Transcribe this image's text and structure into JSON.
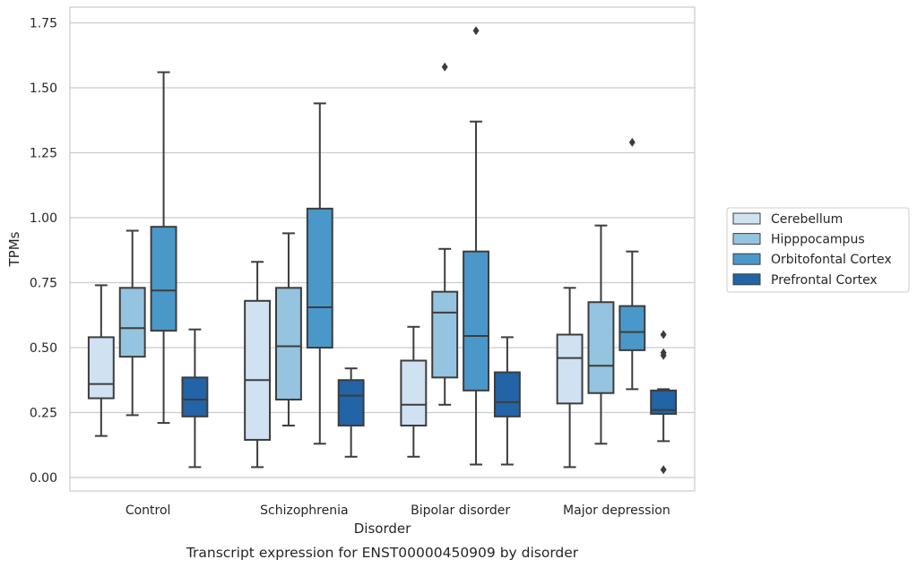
{
  "caption": "Transcript expression for ENST00000450909 by disorder",
  "chart_data": {
    "type": "box",
    "xlabel": "Disorder",
    "ylabel": "TPMs",
    "ylim": [
      -0.05,
      1.81
    ],
    "yticks": [
      0.0,
      0.25,
      0.5,
      0.75,
      1.0,
      1.25,
      1.5,
      1.75
    ],
    "ytick_labels": [
      "0.00",
      "0.25",
      "0.50",
      "0.75",
      "1.00",
      "1.25",
      "1.50",
      "1.75"
    ],
    "grid": "horizontal",
    "legend_position": "right",
    "categories": [
      "Control",
      "Schizophrenia",
      "Bipolar disorder",
      "Major depression"
    ],
    "series": [
      {
        "name": "Cerebellum",
        "color": "#d0e1f2",
        "boxes": [
          {
            "whislo": 0.16,
            "q1": 0.305,
            "med": 0.36,
            "q3": 0.54,
            "whishi": 0.74,
            "fliers": []
          },
          {
            "whislo": 0.04,
            "q1": 0.145,
            "med": 0.375,
            "q3": 0.68,
            "whishi": 0.83,
            "fliers": []
          },
          {
            "whislo": 0.08,
            "q1": 0.2,
            "med": 0.28,
            "q3": 0.45,
            "whishi": 0.58,
            "fliers": []
          },
          {
            "whislo": 0.04,
            "q1": 0.285,
            "med": 0.46,
            "q3": 0.55,
            "whishi": 0.73,
            "fliers": []
          }
        ]
      },
      {
        "name": "Hipppocampus",
        "color": "#94c4df",
        "boxes": [
          {
            "whislo": 0.24,
            "q1": 0.465,
            "med": 0.575,
            "q3": 0.73,
            "whishi": 0.95,
            "fliers": []
          },
          {
            "whislo": 0.2,
            "q1": 0.3,
            "med": 0.505,
            "q3": 0.73,
            "whishi": 0.94,
            "fliers": []
          },
          {
            "whislo": 0.28,
            "q1": 0.385,
            "med": 0.635,
            "q3": 0.715,
            "whishi": 0.88,
            "fliers": [
              1.58
            ]
          },
          {
            "whislo": 0.13,
            "q1": 0.325,
            "med": 0.43,
            "q3": 0.675,
            "whishi": 0.97,
            "fliers": []
          }
        ]
      },
      {
        "name": "Orbitofontal Cortex",
        "color": "#4a98c9",
        "boxes": [
          {
            "whislo": 0.21,
            "q1": 0.565,
            "med": 0.72,
            "q3": 0.965,
            "whishi": 1.56,
            "fliers": []
          },
          {
            "whislo": 0.13,
            "q1": 0.5,
            "med": 0.655,
            "q3": 1.035,
            "whishi": 1.44,
            "fliers": []
          },
          {
            "whislo": 0.05,
            "q1": 0.335,
            "med": 0.545,
            "q3": 0.87,
            "whishi": 1.37,
            "fliers": [
              1.72
            ]
          },
          {
            "whislo": 0.34,
            "q1": 0.49,
            "med": 0.56,
            "q3": 0.66,
            "whishi": 0.87,
            "fliers": [
              1.29
            ]
          }
        ]
      },
      {
        "name": "Prefrontal Cortex",
        "color": "#2264a6",
        "boxes": [
          {
            "whislo": 0.04,
            "q1": 0.235,
            "med": 0.3,
            "q3": 0.385,
            "whishi": 0.57,
            "fliers": []
          },
          {
            "whislo": 0.08,
            "q1": 0.2,
            "med": 0.315,
            "q3": 0.375,
            "whishi": 0.42,
            "fliers": []
          },
          {
            "whislo": 0.05,
            "q1": 0.235,
            "med": 0.29,
            "q3": 0.405,
            "whishi": 0.54,
            "fliers": []
          },
          {
            "whislo": 0.14,
            "q1": 0.245,
            "med": 0.26,
            "q3": 0.335,
            "whishi": 0.34,
            "fliers": [
              0.55,
              0.48,
              0.47,
              0.03
            ]
          }
        ]
      }
    ]
  }
}
